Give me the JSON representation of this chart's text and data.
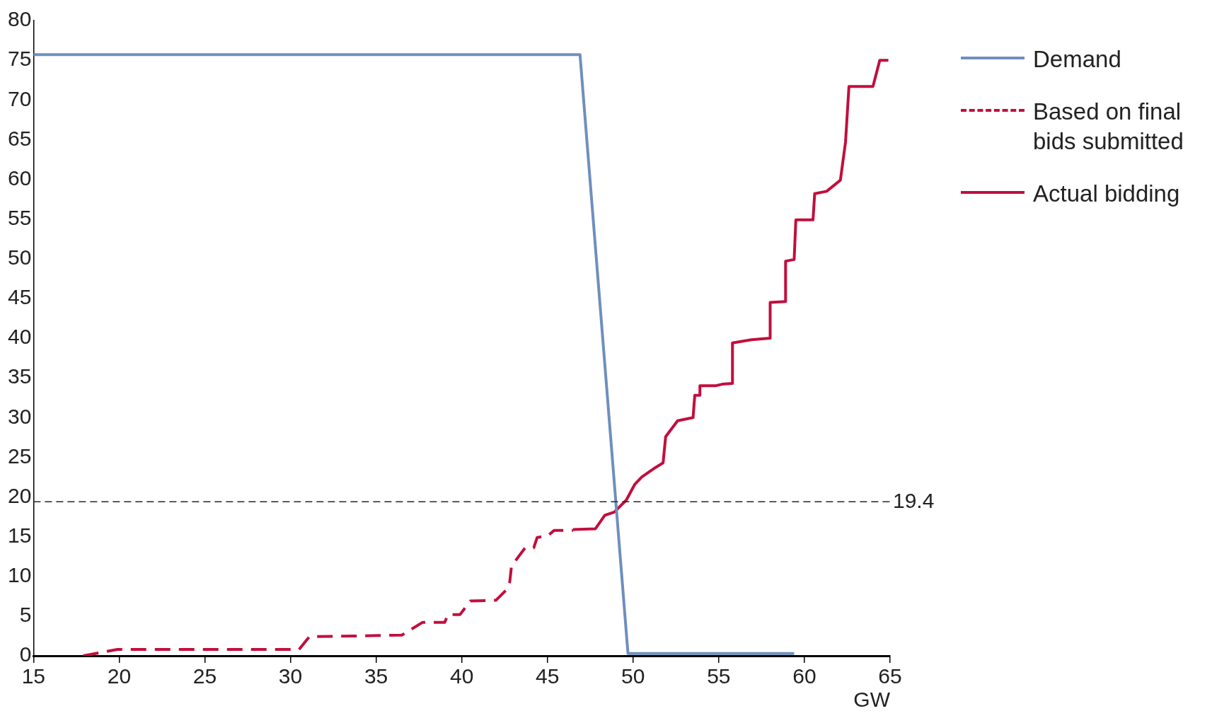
{
  "chart_data": {
    "type": "line",
    "xlabel": "GW",
    "xlim": [
      15,
      65
    ],
    "xticks": [
      15,
      20,
      25,
      30,
      35,
      40,
      45,
      50,
      55,
      60,
      65
    ],
    "ylim": [
      0,
      80
    ],
    "yticks": [
      0,
      5,
      10,
      15,
      20,
      25,
      30,
      35,
      40,
      45,
      50,
      55,
      60,
      65,
      70,
      75,
      80
    ],
    "grid": false,
    "legend": "right",
    "marker": "none",
    "series": [
      {
        "name": "Demand",
        "color": "#6f8fbd",
        "line_style": "solid",
        "x": [
          15,
          46.9,
          49.7,
          59.4
        ],
        "values": [
          75.7,
          75.7,
          0.3,
          0.3
        ]
      },
      {
        "name": "Based on final bids submitted",
        "color": "#c20e3e",
        "line_style": "dashed",
        "x": [
          17.9,
          19.9,
          30.5,
          31.1,
          36.5,
          37.7,
          39.0,
          39.2,
          39.9,
          40.5,
          42.0,
          42.6,
          42.8,
          42.9,
          43.7,
          44.2,
          44.4,
          45.0,
          45.4,
          46.5
        ],
        "values": [
          0,
          0.8,
          0.8,
          2.4,
          2.6,
          4.2,
          4.2,
          5.2,
          5.2,
          6.9,
          7.0,
          8.3,
          9.3,
          11.3,
          13.6,
          13.6,
          14.9,
          15.1,
          15.8,
          15.8
        ]
      },
      {
        "name": "Actual bidding",
        "color": "#c20e3e",
        "line_style": "solid",
        "x": [
          46.5,
          47.8,
          48.35,
          48.9,
          49.6,
          50.1,
          50.5,
          51.3,
          51.75,
          51.9,
          52.6,
          53.5,
          53.6,
          53.9,
          53.9,
          54.8,
          55.2,
          55.8,
          55.8,
          56.9,
          58.0,
          58.0,
          58.9,
          58.9,
          59.4,
          59.5,
          60.5,
          60.6,
          61.3,
          62.1,
          62.4,
          62.6,
          64.0,
          64.4,
          64.9
        ],
        "values": [
          15.9,
          16.0,
          17.7,
          18.1,
          19.6,
          21.6,
          22.5,
          23.7,
          24.3,
          27.6,
          29.6,
          30.0,
          32.8,
          32.8,
          34.0,
          34.0,
          34.2,
          34.3,
          39.4,
          39.8,
          40.0,
          44.5,
          44.6,
          49.7,
          49.9,
          54.9,
          54.9,
          58.2,
          58.5,
          59.9,
          64.7,
          71.7,
          71.7,
          75.0,
          75.0
        ]
      }
    ],
    "ref_lines": [
      {
        "axis": "y",
        "value": 19.4,
        "label": "19.4",
        "color": "#222233",
        "line_style": "dashed"
      }
    ]
  }
}
